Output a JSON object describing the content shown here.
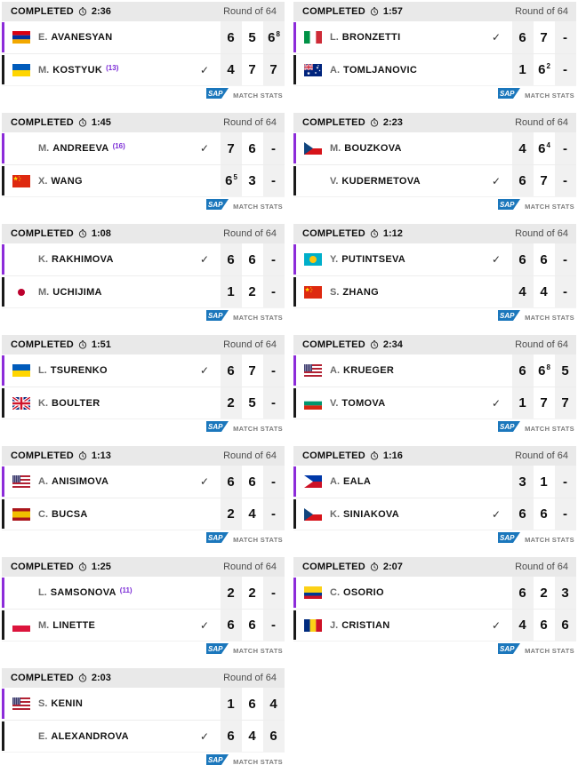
{
  "ui": {
    "check_glyph": "✓",
    "stats_label": "MATCH STATS",
    "sap_label": "SAP",
    "accent_purple": "#8c2bd9",
    "accent_black": "#1a1a1a",
    "seed_color": "#7b2bd6",
    "sap_blue": "#1b77bc",
    "header_bg": "#e9e9e9",
    "score_col_bg": "#f1f1f1"
  },
  "flags": {
    "arm": {
      "type": "h",
      "colors": [
        "#D90012",
        "#0033A0",
        "#F2A800"
      ]
    },
    "ukr": {
      "type": "h",
      "colors": [
        "#005BBB",
        "#FFD500"
      ]
    },
    "chn": {
      "type": "china",
      "colors": [
        "#DE2910",
        "#FFDE00"
      ]
    },
    "jpn": {
      "type": "disc",
      "colors": [
        "#FFFFFF",
        "#BC002D"
      ]
    },
    "gbr": {
      "type": "uk",
      "colors": [
        "#00247D",
        "#FFFFFF",
        "#CF142B"
      ]
    },
    "usa": {
      "type": "usa",
      "colors": [
        "#B22234",
        "#FFFFFF",
        "#3C3B6E"
      ]
    },
    "esp": {
      "type": "h",
      "weights": [
        1,
        2,
        1
      ],
      "colors": [
        "#AA151B",
        "#F1BF00",
        "#AA151B"
      ]
    },
    "pol": {
      "type": "h",
      "colors": [
        "#FFFFFF",
        "#DC143C"
      ]
    },
    "ita": {
      "type": "v",
      "colors": [
        "#009246",
        "#FFFFFF",
        "#CE2B37"
      ]
    },
    "aus": {
      "type": "aus",
      "colors": [
        "#00247D",
        "#FFFFFF",
        "#CF142B"
      ]
    },
    "cze": {
      "type": "triangle",
      "colors": [
        "#FFFFFF",
        "#D7141A",
        "#11457E"
      ]
    },
    "kaz": {
      "type": "disc",
      "colors": [
        "#00AFCA",
        "#FEC50C"
      ]
    },
    "bul": {
      "type": "h",
      "colors": [
        "#FFFFFF",
        "#00966E",
        "#D62612"
      ]
    },
    "phi": {
      "type": "triangle",
      "colors": [
        "#0038A8",
        "#CE1126",
        "#FFFFFF"
      ]
    },
    "col": {
      "type": "h",
      "weights": [
        2,
        1,
        1
      ],
      "colors": [
        "#FCD116",
        "#003893",
        "#CE1126"
      ]
    },
    "rou": {
      "type": "v",
      "colors": [
        "#002B7F",
        "#FCD116",
        "#CE1126"
      ]
    }
  },
  "matches": [
    {
      "col": "left",
      "status": "COMPLETED",
      "duration": "2:36",
      "round": "Round of 64",
      "players": [
        {
          "initial": "E.",
          "surname": "AVANESYAN",
          "seed": "",
          "flag": "arm",
          "winner": false,
          "scores": [
            {
              "main": "6",
              "sup": ""
            },
            {
              "main": "5",
              "sup": ""
            },
            {
              "main": "6",
              "sup": "8"
            }
          ]
        },
        {
          "initial": "M.",
          "surname": "KOSTYUK",
          "seed": "(13)",
          "flag": "ukr",
          "winner": true,
          "scores": [
            {
              "main": "4",
              "sup": ""
            },
            {
              "main": "7",
              "sup": ""
            },
            {
              "main": "7",
              "sup": ""
            }
          ]
        }
      ]
    },
    {
      "col": "left",
      "status": "COMPLETED",
      "duration": "1:45",
      "round": "Round of 64",
      "players": [
        {
          "initial": "M.",
          "surname": "ANDREEVA",
          "seed": "(16)",
          "flag": "",
          "winner": true,
          "scores": [
            {
              "main": "7",
              "sup": ""
            },
            {
              "main": "6",
              "sup": ""
            },
            {
              "main": "-",
              "sup": ""
            }
          ]
        },
        {
          "initial": "X.",
          "surname": "WANG",
          "seed": "",
          "flag": "chn",
          "winner": false,
          "scores": [
            {
              "main": "6",
              "sup": "5"
            },
            {
              "main": "3",
              "sup": ""
            },
            {
              "main": "-",
              "sup": ""
            }
          ]
        }
      ]
    },
    {
      "col": "left",
      "status": "COMPLETED",
      "duration": "1:08",
      "round": "Round of 64",
      "players": [
        {
          "initial": "K.",
          "surname": "RAKHIMOVA",
          "seed": "",
          "flag": "",
          "winner": true,
          "scores": [
            {
              "main": "6",
              "sup": ""
            },
            {
              "main": "6",
              "sup": ""
            },
            {
              "main": "-",
              "sup": ""
            }
          ]
        },
        {
          "initial": "M.",
          "surname": "UCHIJIMA",
          "seed": "",
          "flag": "jpn",
          "winner": false,
          "scores": [
            {
              "main": "1",
              "sup": ""
            },
            {
              "main": "2",
              "sup": ""
            },
            {
              "main": "-",
              "sup": ""
            }
          ]
        }
      ]
    },
    {
      "col": "left",
      "status": "COMPLETED",
      "duration": "1:51",
      "round": "Round of 64",
      "players": [
        {
          "initial": "L.",
          "surname": "TSURENKO",
          "seed": "",
          "flag": "ukr",
          "winner": true,
          "scores": [
            {
              "main": "6",
              "sup": ""
            },
            {
              "main": "7",
              "sup": ""
            },
            {
              "main": "-",
              "sup": ""
            }
          ]
        },
        {
          "initial": "K.",
          "surname": "BOULTER",
          "seed": "",
          "flag": "gbr",
          "winner": false,
          "scores": [
            {
              "main": "2",
              "sup": ""
            },
            {
              "main": "5",
              "sup": ""
            },
            {
              "main": "-",
              "sup": ""
            }
          ]
        }
      ]
    },
    {
      "col": "left",
      "status": "COMPLETED",
      "duration": "1:13",
      "round": "Round of 64",
      "players": [
        {
          "initial": "A.",
          "surname": "ANISIMOVA",
          "seed": "",
          "flag": "usa",
          "winner": true,
          "scores": [
            {
              "main": "6",
              "sup": ""
            },
            {
              "main": "6",
              "sup": ""
            },
            {
              "main": "-",
              "sup": ""
            }
          ]
        },
        {
          "initial": "C.",
          "surname": "BUCSA",
          "seed": "",
          "flag": "esp",
          "winner": false,
          "scores": [
            {
              "main": "2",
              "sup": ""
            },
            {
              "main": "4",
              "sup": ""
            },
            {
              "main": "-",
              "sup": ""
            }
          ]
        }
      ]
    },
    {
      "col": "left",
      "status": "COMPLETED",
      "duration": "1:25",
      "round": "Round of 64",
      "players": [
        {
          "initial": "L.",
          "surname": "SAMSONOVA",
          "seed": "(11)",
          "flag": "",
          "winner": false,
          "scores": [
            {
              "main": "2",
              "sup": ""
            },
            {
              "main": "2",
              "sup": ""
            },
            {
              "main": "-",
              "sup": ""
            }
          ]
        },
        {
          "initial": "M.",
          "surname": "LINETTE",
          "seed": "",
          "flag": "pol",
          "winner": true,
          "scores": [
            {
              "main": "6",
              "sup": ""
            },
            {
              "main": "6",
              "sup": ""
            },
            {
              "main": "-",
              "sup": ""
            }
          ]
        }
      ]
    },
    {
      "col": "left",
      "status": "COMPLETED",
      "duration": "2:03",
      "round": "Round of 64",
      "players": [
        {
          "initial": "S.",
          "surname": "KENIN",
          "seed": "",
          "flag": "usa",
          "winner": false,
          "scores": [
            {
              "main": "1",
              "sup": ""
            },
            {
              "main": "6",
              "sup": ""
            },
            {
              "main": "4",
              "sup": ""
            }
          ]
        },
        {
          "initial": "E.",
          "surname": "ALEXANDROVA",
          "seed": "",
          "flag": "",
          "winner": true,
          "scores": [
            {
              "main": "6",
              "sup": ""
            },
            {
              "main": "4",
              "sup": ""
            },
            {
              "main": "6",
              "sup": ""
            }
          ]
        }
      ]
    },
    {
      "col": "right",
      "status": "COMPLETED",
      "duration": "1:57",
      "round": "Round of 64",
      "players": [
        {
          "initial": "L.",
          "surname": "BRONZETTI",
          "seed": "",
          "flag": "ita",
          "winner": true,
          "scores": [
            {
              "main": "6",
              "sup": ""
            },
            {
              "main": "7",
              "sup": ""
            },
            {
              "main": "-",
              "sup": ""
            }
          ]
        },
        {
          "initial": "A.",
          "surname": "TOMLJANOVIC",
          "seed": "",
          "flag": "aus",
          "winner": false,
          "scores": [
            {
              "main": "1",
              "sup": ""
            },
            {
              "main": "6",
              "sup": "2"
            },
            {
              "main": "-",
              "sup": ""
            }
          ]
        }
      ]
    },
    {
      "col": "right",
      "status": "COMPLETED",
      "duration": "2:23",
      "round": "Round of 64",
      "players": [
        {
          "initial": "M.",
          "surname": "BOUZKOVA",
          "seed": "",
          "flag": "cze",
          "winner": false,
          "scores": [
            {
              "main": "4",
              "sup": ""
            },
            {
              "main": "6",
              "sup": "4"
            },
            {
              "main": "-",
              "sup": ""
            }
          ]
        },
        {
          "initial": "V.",
          "surname": "KUDERMETOVA",
          "seed": "",
          "flag": "",
          "winner": true,
          "scores": [
            {
              "main": "6",
              "sup": ""
            },
            {
              "main": "7",
              "sup": ""
            },
            {
              "main": "-",
              "sup": ""
            }
          ]
        }
      ]
    },
    {
      "col": "right",
      "status": "COMPLETED",
      "duration": "1:12",
      "round": "Round of 64",
      "players": [
        {
          "initial": "Y.",
          "surname": "PUTINTSEVA",
          "seed": "",
          "flag": "kaz",
          "winner": true,
          "scores": [
            {
              "main": "6",
              "sup": ""
            },
            {
              "main": "6",
              "sup": ""
            },
            {
              "main": "-",
              "sup": ""
            }
          ]
        },
        {
          "initial": "S.",
          "surname": "ZHANG",
          "seed": "",
          "flag": "chn",
          "winner": false,
          "scores": [
            {
              "main": "4",
              "sup": ""
            },
            {
              "main": "4",
              "sup": ""
            },
            {
              "main": "-",
              "sup": ""
            }
          ]
        }
      ]
    },
    {
      "col": "right",
      "status": "COMPLETED",
      "duration": "2:34",
      "round": "Round of 64",
      "players": [
        {
          "initial": "A.",
          "surname": "KRUEGER",
          "seed": "",
          "flag": "usa",
          "winner": false,
          "scores": [
            {
              "main": "6",
              "sup": ""
            },
            {
              "main": "6",
              "sup": "8"
            },
            {
              "main": "5",
              "sup": ""
            }
          ]
        },
        {
          "initial": "V.",
          "surname": "TOMOVA",
          "seed": "",
          "flag": "bul",
          "winner": true,
          "scores": [
            {
              "main": "1",
              "sup": ""
            },
            {
              "main": "7",
              "sup": ""
            },
            {
              "main": "7",
              "sup": ""
            }
          ]
        }
      ]
    },
    {
      "col": "right",
      "status": "COMPLETED",
      "duration": "1:16",
      "round": "Round of 64",
      "players": [
        {
          "initial": "A.",
          "surname": "EALA",
          "seed": "",
          "flag": "phi",
          "winner": false,
          "scores": [
            {
              "main": "3",
              "sup": ""
            },
            {
              "main": "1",
              "sup": ""
            },
            {
              "main": "-",
              "sup": ""
            }
          ]
        },
        {
          "initial": "K.",
          "surname": "SINIAKOVA",
          "seed": "",
          "flag": "cze",
          "winner": true,
          "scores": [
            {
              "main": "6",
              "sup": ""
            },
            {
              "main": "6",
              "sup": ""
            },
            {
              "main": "-",
              "sup": ""
            }
          ]
        }
      ]
    },
    {
      "col": "right",
      "status": "COMPLETED",
      "duration": "2:07",
      "round": "Round of 64",
      "players": [
        {
          "initial": "C.",
          "surname": "OSORIO",
          "seed": "",
          "flag": "col",
          "winner": false,
          "scores": [
            {
              "main": "6",
              "sup": ""
            },
            {
              "main": "2",
              "sup": ""
            },
            {
              "main": "3",
              "sup": ""
            }
          ]
        },
        {
          "initial": "J.",
          "surname": "CRISTIAN",
          "seed": "",
          "flag": "rou",
          "winner": true,
          "scores": [
            {
              "main": "4",
              "sup": ""
            },
            {
              "main": "6",
              "sup": ""
            },
            {
              "main": "6",
              "sup": ""
            }
          ]
        }
      ]
    }
  ]
}
